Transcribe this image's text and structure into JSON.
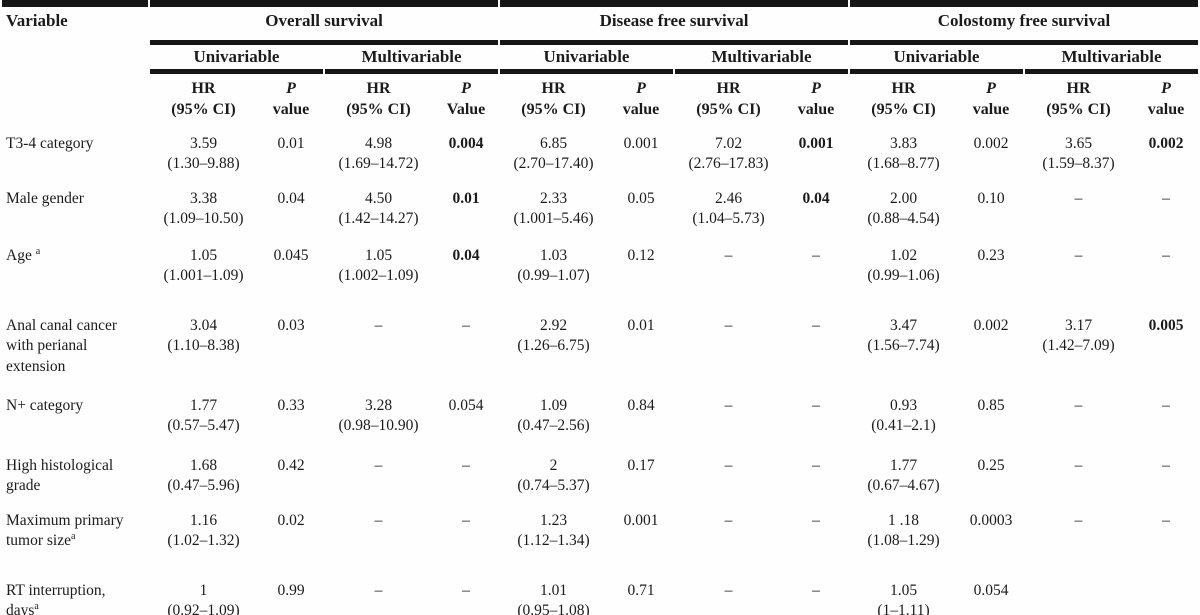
{
  "header": {
    "variable": "Variable",
    "groups": [
      {
        "label": "Overall survival",
        "sub": [
          "Univariable",
          "Multivariable"
        ]
      },
      {
        "label": "Disease free survival",
        "sub": [
          "Univariable",
          "Multivariable"
        ]
      },
      {
        "label": "Colostomy free survival",
        "sub": [
          "Univariable",
          "Multivariable"
        ]
      }
    ],
    "stat_columns": [
      {
        "kind": "hr",
        "line1": "HR",
        "line2": "(95% CI)"
      },
      {
        "kind": "p",
        "line1": "P",
        "line2": "value"
      },
      {
        "kind": "hr",
        "line1": "HR",
        "line2": "(95% CI)"
      },
      {
        "kind": "p",
        "line1": "P",
        "line2": "Value"
      },
      {
        "kind": "hr",
        "line1": "HR",
        "line2": "(95% CI)"
      },
      {
        "kind": "p",
        "line1": "P",
        "line2": "value"
      },
      {
        "kind": "hr",
        "line1": "HR",
        "line2": "(95% CI)"
      },
      {
        "kind": "p",
        "line1": "P",
        "line2": "value"
      },
      {
        "kind": "hr",
        "line1": "HR",
        "line2": "(95% CI)"
      },
      {
        "kind": "p",
        "line1": "P",
        "line2": "value"
      },
      {
        "kind": "hr",
        "line1": "HR",
        "line2": "(95% CI)"
      },
      {
        "kind": "p",
        "line1": "P",
        "line2": "value"
      }
    ]
  },
  "rows": [
    {
      "variable": "T3-4 category",
      "sup": "",
      "cells": [
        {
          "hr": "3.59",
          "ci": "(1.30–9.88)",
          "p": "0.01",
          "p_bold": false
        },
        {
          "hr": "4.98",
          "ci": "(1.69–14.72)",
          "p": "0.004",
          "p_bold": true
        },
        {
          "hr": "6.85",
          "ci": "(2.70–17.40)",
          "p": "0.001",
          "p_bold": false
        },
        {
          "hr": "7.02",
          "ci": "(2.76–17.83)",
          "p": "0.001",
          "p_bold": true
        },
        {
          "hr": "3.83",
          "ci": "(1.68–8.77)",
          "p": "0.002",
          "p_bold": false
        },
        {
          "hr": "3.65",
          "ci": "(1.59–8.37)",
          "p": "0.002",
          "p_bold": true
        }
      ]
    },
    {
      "variable": "Male gender",
      "sup": "",
      "cells": [
        {
          "hr": "3.38",
          "ci": "(1.09–10.50)",
          "p": "0.04",
          "p_bold": false
        },
        {
          "hr": "4.50",
          "ci": "(1.42–14.27)",
          "p": "0.01",
          "p_bold": true
        },
        {
          "hr": "2.33",
          "ci": "(1.001–5.46)",
          "p": "0.05",
          "p_bold": false
        },
        {
          "hr": "2.46",
          "ci": "(1.04–5.73)",
          "p": "0.04",
          "p_bold": true
        },
        {
          "hr": "2.00",
          "ci": "(0.88–4.54)",
          "p": "0.10",
          "p_bold": false
        },
        {
          "hr": "–",
          "ci": "",
          "p": "–",
          "p_bold": false
        }
      ]
    },
    {
      "variable": "Age ",
      "sup": "a",
      "cells": [
        {
          "hr": "1.05",
          "ci": "(1.001–1.09)",
          "p": "0.045",
          "p_bold": false
        },
        {
          "hr": "1.05",
          "ci": "(1.002–1.09)",
          "p": "0.04",
          "p_bold": true
        },
        {
          "hr": "1.03",
          "ci": "(0.99–1.07)",
          "p": "0.12",
          "p_bold": false
        },
        {
          "hr": "–",
          "ci": "",
          "p": "–",
          "p_bold": false
        },
        {
          "hr": "1.02",
          "ci": "(0.99–1.06)",
          "p": "0.23",
          "p_bold": false
        },
        {
          "hr": "–",
          "ci": "",
          "p": "–",
          "p_bold": false
        }
      ]
    },
    {
      "variable": "Anal canal cancer with perianal extension",
      "sup": "",
      "cells": [
        {
          "hr": "3.04",
          "ci": "(1.10–8.38)",
          "p": "0.03",
          "p_bold": false
        },
        {
          "hr": "–",
          "ci": "",
          "p": "–",
          "p_bold": false
        },
        {
          "hr": "2.92",
          "ci": "(1.26–6.75)",
          "p": "0.01",
          "p_bold": false
        },
        {
          "hr": "–",
          "ci": "",
          "p": "–",
          "p_bold": false
        },
        {
          "hr": "3.47",
          "ci": "(1.56–7.74)",
          "p": "0.002",
          "p_bold": false
        },
        {
          "hr": "3.17",
          "ci": "(1.42–7.09)",
          "p": "0.005",
          "p_bold": true
        }
      ]
    },
    {
      "variable": "N+ category",
      "sup": "",
      "cells": [
        {
          "hr": "1.77",
          "ci": "(0.57–5.47)",
          "p": "0.33",
          "p_bold": false
        },
        {
          "hr": "3.28",
          "ci": "(0.98–10.90)",
          "p": "0.054",
          "p_bold": false
        },
        {
          "hr": "1.09",
          "ci": "(0.47–2.56)",
          "p": "0.84",
          "p_bold": false
        },
        {
          "hr": "–",
          "ci": "",
          "p": "–",
          "p_bold": false
        },
        {
          "hr": "0.93",
          "ci": "(0.41–2.1)",
          "p": "0.85",
          "p_bold": false
        },
        {
          "hr": "–",
          "ci": "",
          "p": "–",
          "p_bold": false
        }
      ]
    },
    {
      "variable": "High histological grade",
      "sup": "",
      "cells": [
        {
          "hr": "1.68",
          "ci": "(0.47–5.96)",
          "p": "0.42",
          "p_bold": false
        },
        {
          "hr": "–",
          "ci": "",
          "p": "–",
          "p_bold": false
        },
        {
          "hr": "2",
          "ci": "(0.74–5.37)",
          "p": "0.17",
          "p_bold": false
        },
        {
          "hr": "–",
          "ci": "",
          "p": "–",
          "p_bold": false
        },
        {
          "hr": "1.77",
          "ci": "(0.67–4.67)",
          "p": "0.25",
          "p_bold": false
        },
        {
          "hr": "–",
          "ci": "",
          "p": "–",
          "p_bold": false
        }
      ]
    },
    {
      "variable": "Maximum primary tumor size",
      "sup": "a",
      "cells": [
        {
          "hr": "1.16",
          "ci": "(1.02–1.32)",
          "p": "0.02",
          "p_bold": false
        },
        {
          "hr": "–",
          "ci": "",
          "p": "–",
          "p_bold": false
        },
        {
          "hr": "1.23",
          "ci": "(1.12–1.34)",
          "p": "0.001",
          "p_bold": false
        },
        {
          "hr": "–",
          "ci": "",
          "p": "–",
          "p_bold": false
        },
        {
          "hr": "1 .18",
          "ci": "(1.08–1.29)",
          "p": "0.0003",
          "p_bold": false
        },
        {
          "hr": "–",
          "ci": "",
          "p": "–",
          "p_bold": false
        }
      ]
    },
    {
      "variable": "RT interruption, days",
      "sup": "a",
      "cells": [
        {
          "hr": "1",
          "ci": "(0.92–1.09)",
          "p": "0.99",
          "p_bold": false
        },
        {
          "hr": "–",
          "ci": "",
          "p": "–",
          "p_bold": false
        },
        {
          "hr": "1.01",
          "ci": "(0.95–1.08)",
          "p": "0.71",
          "p_bold": false
        },
        {
          "hr": "–",
          "ci": "",
          "p": "–",
          "p_bold": false
        },
        {
          "hr": "1.05",
          "ci": "(1–1.11)",
          "p": "0.054",
          "p_bold": false
        },
        {
          "hr": "",
          "ci": "",
          "p": "",
          "p_bold": false
        }
      ]
    }
  ]
}
